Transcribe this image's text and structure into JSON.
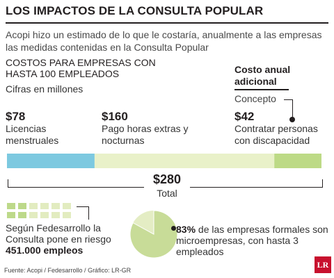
{
  "title": "LOS IMPACTOS DE LA CONSULTA POPULAR",
  "subtitle": "Acopi hizo un estimado de lo que le costaría, anualmente a las empresas las medidas contenidas en la Consulta Popular",
  "section_title": "COSTOS PARA EMPRESAS CON HASTA 100 EMPLEADOS",
  "units": "Cifras en millones",
  "additional": {
    "title": "Costo anual adicional",
    "concept": "Concepto"
  },
  "colors": {
    "blue": "#7dc9e0",
    "light_green": "#e9f1c9",
    "green": "#bdda86",
    "pie_light": "#e4edc4",
    "pie_dark": "#c8dc98",
    "dot_light": "#e2ecc0",
    "dot_dark": "#bdd98a",
    "logo_red": "#c8102e"
  },
  "chart_data": {
    "type": "bar",
    "stacked": true,
    "orientation": "horizontal",
    "categories": [
      "Licencias menstruales",
      "Pago horas extras y nocturnas",
      "Contratar personas con discapacidad"
    ],
    "values": [
      78,
      160,
      42
    ],
    "value_labels": [
      "$78",
      "$160",
      "$42"
    ],
    "total": 280,
    "total_label": "$280",
    "total_text": "Total"
  },
  "fedesarrollo": {
    "text_before": "Según Fedesarrollo la Consulta pone en riesgo",
    "bold": "451.000 empleos",
    "dots_rows": 2,
    "dots_cols": 6
  },
  "pie": {
    "percent": 83,
    "percent_label": "83%",
    "text": "de las empresas formales son microempresas, con hasta 3 empleados"
  },
  "source": "Fuente: Acopi / Fedesarrollo / Gráfico: LR-GR",
  "logo": "LR"
}
